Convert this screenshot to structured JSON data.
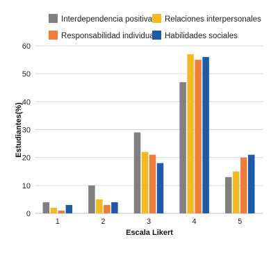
{
  "chart_data": {
    "type": "bar",
    "categories": [
      "1",
      "2",
      "3",
      "4",
      "5"
    ],
    "series": [
      {
        "name": "Interdependencia positiva",
        "color": "#808080",
        "values": [
          4,
          10,
          29,
          47,
          13
        ]
      },
      {
        "name": "Relaciones interpersonales",
        "color": "#F5B921",
        "values": [
          2,
          5,
          22,
          57,
          15
        ]
      },
      {
        "name": "Responsabilidad individual",
        "color": "#EE7D3B",
        "values": [
          1,
          3,
          21,
          55,
          20
        ]
      },
      {
        "name": "Habilidades sociales",
        "color": "#1F5AA6",
        "values": [
          3,
          4,
          18,
          56,
          21
        ]
      }
    ],
    "xlabel": "Escala Likert",
    "ylabel": "Estudiantes(%)",
    "ylim": [
      0,
      60
    ],
    "yticks": [
      0,
      10,
      20,
      30,
      40,
      50,
      60
    ],
    "grid": true,
    "legend": "top"
  }
}
